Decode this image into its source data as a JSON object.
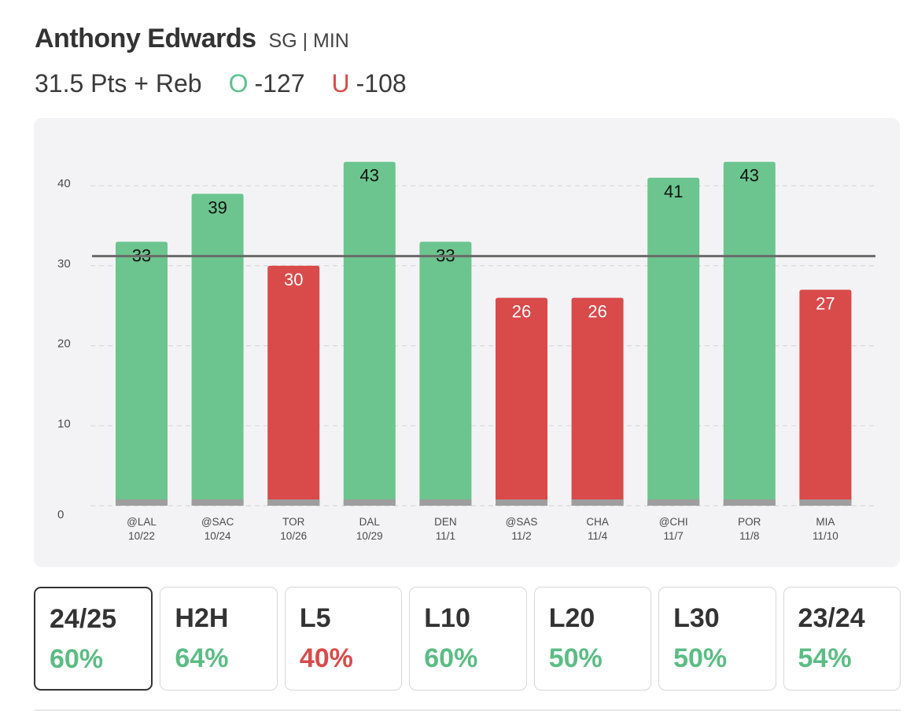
{
  "player": {
    "name": "Anthony Edwards",
    "meta": "SG | MIN"
  },
  "prop": {
    "line": "31.5 Pts + Reb",
    "over_symbol": "O",
    "over_odds": "-127",
    "under_symbol": "U",
    "under_odds": "-108"
  },
  "colors": {
    "over": "#6cc58e",
    "under": "#d94a4a",
    "over_text": "#5bbd84",
    "under_text": "#d94a4a",
    "line": "#6a6a6a",
    "baseline": "#9e9e9e",
    "grid": "#d8d8dc",
    "axis_text": "#4a4a4a"
  },
  "chart_data": {
    "type": "bar",
    "categories": [
      "@LAL",
      "@SAC",
      "TOR",
      "DAL",
      "DEN",
      "@SAS",
      "CHA",
      "@CHI",
      "POR",
      "MIA"
    ],
    "dates": [
      "10/22",
      "10/24",
      "10/26",
      "10/29",
      "11/1",
      "11/2",
      "11/4",
      "11/7",
      "11/8",
      "11/10"
    ],
    "values": [
      33,
      39,
      30,
      43,
      33,
      26,
      26,
      41,
      43,
      27
    ],
    "result": [
      "over",
      "over",
      "under",
      "over",
      "over",
      "under",
      "under",
      "over",
      "over",
      "under"
    ],
    "line_value": 31.5,
    "ylim": [
      0,
      43
    ],
    "yticks": [
      0,
      10,
      20,
      30,
      40
    ],
    "grid": true,
    "title": "",
    "xlabel": "",
    "ylabel": ""
  },
  "tiles": [
    {
      "label": "24/25",
      "pct": "60%",
      "status": "over",
      "selected": true
    },
    {
      "label": "H2H",
      "pct": "64%",
      "status": "over",
      "selected": false
    },
    {
      "label": "L5",
      "pct": "40%",
      "status": "under",
      "selected": false
    },
    {
      "label": "L10",
      "pct": "60%",
      "status": "over",
      "selected": false
    },
    {
      "label": "L20",
      "pct": "50%",
      "status": "over",
      "selected": false
    },
    {
      "label": "L30",
      "pct": "50%",
      "status": "over",
      "selected": false
    },
    {
      "label": "23/24",
      "pct": "54%",
      "status": "over",
      "selected": false
    }
  ]
}
